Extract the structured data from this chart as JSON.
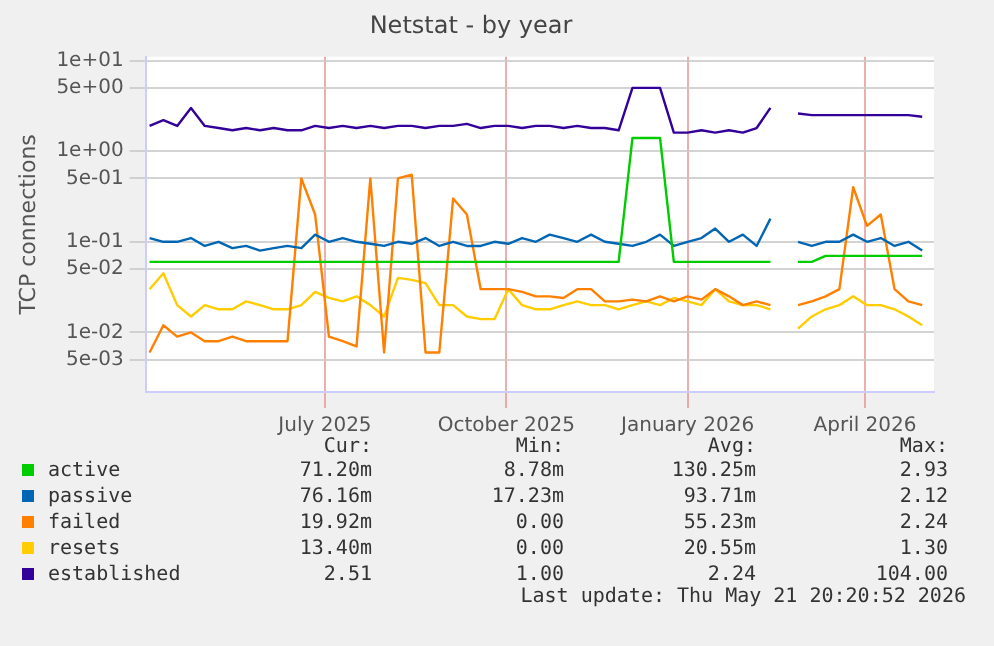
{
  "chart_data": {
    "type": "line",
    "title": "Netstat - by year",
    "ylabel": "TCP connections",
    "log": "y",
    "grid": true,
    "legend": "bottom",
    "marker": "none",
    "ylim": [
      0.0022,
      11
    ],
    "yticks": [
      {
        "value": 10,
        "label": "1e+01"
      },
      {
        "value": 5,
        "label": "5e+00"
      },
      {
        "value": 1,
        "label": "1e+00"
      },
      {
        "value": 0.5,
        "label": "5e-01"
      },
      {
        "value": 0.1,
        "label": "1e-01"
      },
      {
        "value": 0.05,
        "label": "5e-02"
      },
      {
        "value": 0.01,
        "label": "1e-02"
      },
      {
        "value": 0.005,
        "label": "5e-03"
      }
    ],
    "xlim": [
      "2025-04-16",
      "2026-05-21"
    ],
    "xticks": [
      {
        "value": "2025-07-16",
        "label": "July 2025"
      },
      {
        "value": "2025-10-16",
        "label": "October 2025"
      },
      {
        "value": "2026-01-16",
        "label": "January 2026"
      },
      {
        "value": "2026-04-16",
        "label": "April 2026"
      }
    ],
    "x": [
      "2025-04-18",
      "2025-04-25",
      "2025-05-02",
      "2025-05-09",
      "2025-05-16",
      "2025-05-23",
      "2025-05-30",
      "2025-06-06",
      "2025-06-13",
      "2025-06-20",
      "2025-06-27",
      "2025-07-04",
      "2025-07-11",
      "2025-07-18",
      "2025-07-25",
      "2025-08-01",
      "2025-08-08",
      "2025-08-15",
      "2025-08-22",
      "2025-08-29",
      "2025-09-05",
      "2025-09-12",
      "2025-09-19",
      "2025-09-26",
      "2025-10-03",
      "2025-10-10",
      "2025-10-17",
      "2025-10-24",
      "2025-10-31",
      "2025-11-07",
      "2025-11-14",
      "2025-11-21",
      "2025-11-28",
      "2025-12-05",
      "2025-12-12",
      "2025-12-19",
      "2025-12-26",
      "2026-01-02",
      "2026-01-09",
      "2026-01-16",
      "2026-01-23",
      "2026-01-30",
      "2026-02-06",
      "2026-02-13",
      "2026-02-20",
      "2026-02-27",
      "2026-03-06",
      "2026-03-13",
      "2026-03-20",
      "2026-03-27",
      "2026-04-03",
      "2026-04-10",
      "2026-04-17",
      "2026-04-24",
      "2026-05-01",
      "2026-05-08",
      "2026-05-15"
    ],
    "series": [
      {
        "name": "active",
        "color": "#00cc00",
        "values": [
          0.06,
          0.06,
          0.06,
          0.06,
          0.06,
          0.06,
          0.06,
          0.06,
          0.06,
          0.06,
          0.06,
          0.06,
          0.06,
          0.06,
          0.06,
          0.06,
          0.06,
          0.06,
          0.06,
          0.06,
          0.06,
          0.06,
          0.06,
          0.06,
          0.06,
          0.06,
          0.06,
          0.06,
          0.06,
          0.06,
          0.06,
          0.06,
          0.06,
          0.06,
          0.06,
          1.4,
          1.4,
          1.4,
          0.06,
          0.06,
          0.06,
          0.06,
          0.06,
          0.06,
          0.06,
          0.06,
          null,
          0.06,
          0.06,
          0.07,
          0.07,
          0.07,
          0.07,
          0.07,
          0.07,
          0.07,
          0.07
        ]
      },
      {
        "name": "passive",
        "color": "#0066b3",
        "values": [
          0.11,
          0.1,
          0.1,
          0.11,
          0.09,
          0.1,
          0.085,
          0.09,
          0.08,
          0.085,
          0.09,
          0.085,
          0.12,
          0.1,
          0.11,
          0.1,
          0.095,
          0.09,
          0.1,
          0.095,
          0.11,
          0.09,
          0.1,
          0.09,
          0.09,
          0.1,
          0.095,
          0.11,
          0.1,
          0.12,
          0.11,
          0.1,
          0.12,
          0.1,
          0.095,
          0.09,
          0.1,
          0.12,
          0.09,
          0.1,
          0.11,
          0.14,
          0.1,
          0.12,
          0.09,
          0.18,
          null,
          0.1,
          0.09,
          0.1,
          0.1,
          0.12,
          0.1,
          0.11,
          0.09,
          0.1,
          0.08
        ]
      },
      {
        "name": "failed",
        "color": "#ff8000",
        "values": [
          0.006,
          0.012,
          0.009,
          0.01,
          0.008,
          0.008,
          0.009,
          0.008,
          0.008,
          0.008,
          0.008,
          0.5,
          0.2,
          0.009,
          0.008,
          0.007,
          0.5,
          0.006,
          0.5,
          0.55,
          0.006,
          0.006,
          0.3,
          0.2,
          0.03,
          0.03,
          0.03,
          0.028,
          0.025,
          0.025,
          0.024,
          0.03,
          0.03,
          0.022,
          0.022,
          0.023,
          0.022,
          0.025,
          0.022,
          0.025,
          0.023,
          0.03,
          0.025,
          0.02,
          0.022,
          0.02,
          null,
          0.02,
          0.022,
          0.025,
          0.03,
          0.4,
          0.15,
          0.2,
          0.03,
          0.022,
          0.02
        ]
      },
      {
        "name": "resets",
        "color": "#ffcc00",
        "values": [
          0.03,
          0.045,
          0.02,
          0.015,
          0.02,
          0.018,
          0.018,
          0.022,
          0.02,
          0.018,
          0.018,
          0.02,
          0.028,
          0.024,
          0.022,
          0.025,
          0.02,
          0.015,
          0.04,
          0.038,
          0.035,
          0.02,
          0.02,
          0.015,
          0.014,
          0.014,
          0.03,
          0.02,
          0.018,
          0.018,
          0.02,
          0.022,
          0.02,
          0.02,
          0.018,
          0.02,
          0.022,
          0.02,
          0.024,
          0.022,
          0.02,
          0.03,
          0.022,
          0.02,
          0.02,
          0.018,
          null,
          0.011,
          0.015,
          0.018,
          0.02,
          0.025,
          0.02,
          0.02,
          0.018,
          0.015,
          0.012
        ]
      },
      {
        "name": "established",
        "color": "#330099",
        "values": [
          1.9,
          2.2,
          1.9,
          3.0,
          1.9,
          1.8,
          1.7,
          1.8,
          1.7,
          1.8,
          1.7,
          1.7,
          1.9,
          1.8,
          1.9,
          1.8,
          1.9,
          1.8,
          1.9,
          1.9,
          1.8,
          1.9,
          1.9,
          2.0,
          1.8,
          1.9,
          1.9,
          1.8,
          1.9,
          1.9,
          1.8,
          1.9,
          1.8,
          1.8,
          1.7,
          5.0,
          5.0,
          5.0,
          1.6,
          1.6,
          1.7,
          1.6,
          1.7,
          1.6,
          1.8,
          3.0,
          null,
          2.6,
          2.5,
          2.5,
          2.5,
          2.5,
          2.5,
          2.5,
          2.5,
          2.5,
          2.4
        ]
      }
    ],
    "annotations": [
      "Cur:",
      "Min:",
      "Avg:",
      "Max:",
      "71.20m",
      "8.78m",
      "130.25m",
      "2.93",
      "76.16m",
      "17.23m",
      "93.71m",
      "2.12",
      "19.92m",
      "0.00",
      "55.23m",
      "2.24",
      "13.40m",
      "0.00",
      "20.55m",
      "1.30",
      "2.51",
      "1.00",
      "2.24",
      "104.00",
      "Last update: Thu May 21 20:20:52 2026"
    ]
  }
}
